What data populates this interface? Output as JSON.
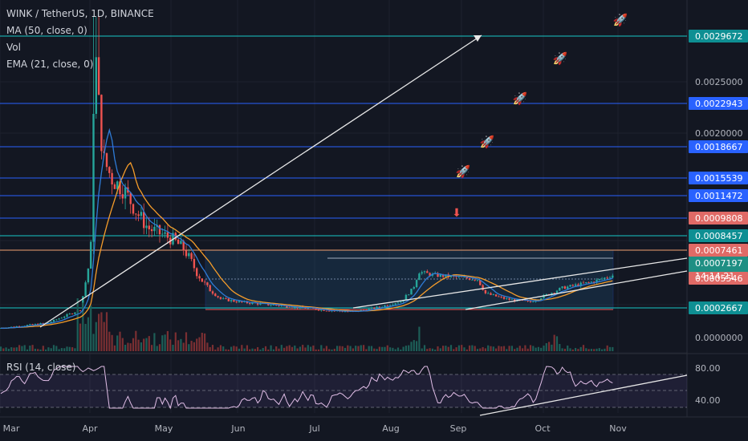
{
  "header": {
    "symbol": "WINK / TetherUS, 1D, BINANCE",
    "ma": "MA (50, close, 0)",
    "vol": "Vol",
    "ema": "EMA (21, close, 0)",
    "rsi": "RSI (14, close)"
  },
  "colors": {
    "background": "#131722",
    "up": "#26a69a",
    "down": "#ef5350",
    "ma_line": "#f59c2a",
    "ema_line": "#2e7bd6",
    "cyan_level": "#17c7c7",
    "blue_level": "#2962ff",
    "orange_level": "#f0a070",
    "rsi_line": "#e1bee7",
    "trend_line": "#e8e8e8",
    "range_box": "#1e4a6e"
  },
  "chart_data": {
    "type": "candlestick",
    "x_tick_labels": [
      "Mar",
      "Apr",
      "May",
      "Jun",
      "Jul",
      "Aug",
      "Sep",
      "Oct",
      "Nov"
    ],
    "y_tick_labels": [
      "0.0025000",
      "0.0020000",
      "0.0000000"
    ],
    "price_levels": [
      {
        "value": "0.0029672",
        "kind": "cyan"
      },
      {
        "value": "0.0022943",
        "kind": "blue"
      },
      {
        "value": "0.0018667",
        "kind": "blue"
      },
      {
        "value": "0.0015539",
        "kind": "blue"
      },
      {
        "value": "0.0011472",
        "kind": "blue"
      },
      {
        "value": "0.0009808",
        "kind": "red"
      },
      {
        "value": "0.0008457",
        "kind": "cyan"
      },
      {
        "value": "0.0007461",
        "kind": "red"
      },
      {
        "value": "0.0007197",
        "kind": "last"
      },
      {
        "value": "0.0005546",
        "kind": "red"
      },
      {
        "value": "0.0002667",
        "kind": "cyan"
      }
    ],
    "countdown": "14:14:21",
    "rsi_levels": [
      "80.00",
      "40.00"
    ],
    "annotations": [
      "rocket",
      "rocket",
      "rocket",
      "rocket",
      "rocket",
      "down-arrow"
    ]
  }
}
